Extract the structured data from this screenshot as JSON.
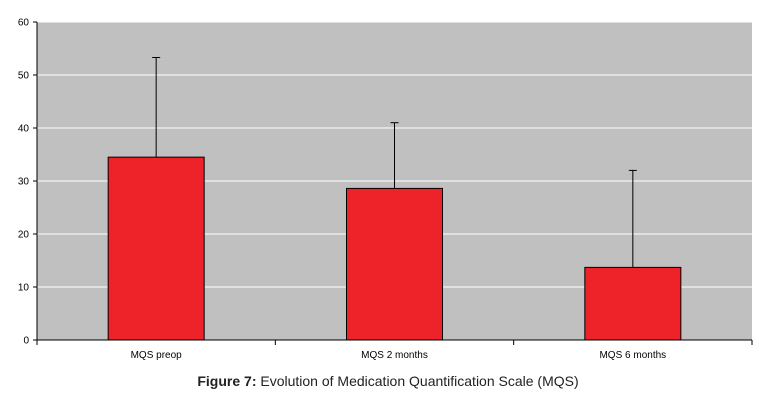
{
  "caption": {
    "label": "Figure 7:",
    "text": " Evolution of Medication Quantification Scale (MQS)"
  },
  "colors": {
    "plot_background": "#c0c0c0",
    "bar_fill": "#ee2229",
    "bar_stroke": "#000000",
    "gridline": "#ffffff"
  },
  "chart_data": {
    "type": "bar",
    "title": "",
    "xlabel": "",
    "ylabel": "",
    "categories": [
      "MQS preop",
      "MQS 2 months",
      "MQS 6 months"
    ],
    "values": [
      34.5,
      28.6,
      13.7
    ],
    "error_upper": [
      18.8,
      12.4,
      18.3
    ],
    "ylim": [
      0,
      60
    ],
    "yticks": [
      0,
      10,
      20,
      30,
      40,
      50,
      60
    ],
    "grid": true,
    "legend": "none"
  }
}
